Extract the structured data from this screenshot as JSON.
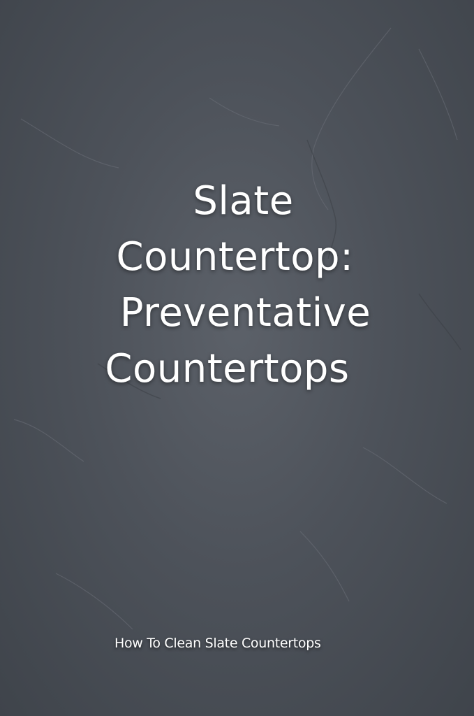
{
  "background": {
    "texture": "slate-stone",
    "base_color": "#4d525a",
    "vein_color": "#6b7078"
  },
  "title": {
    "lines": [
      "Slate",
      "Countertop:",
      "Preventative",
      "Countertops"
    ],
    "color": "#ffffff"
  },
  "subtitle": {
    "text": "How To Clean Slate Countertops",
    "color": "#ffffff"
  }
}
